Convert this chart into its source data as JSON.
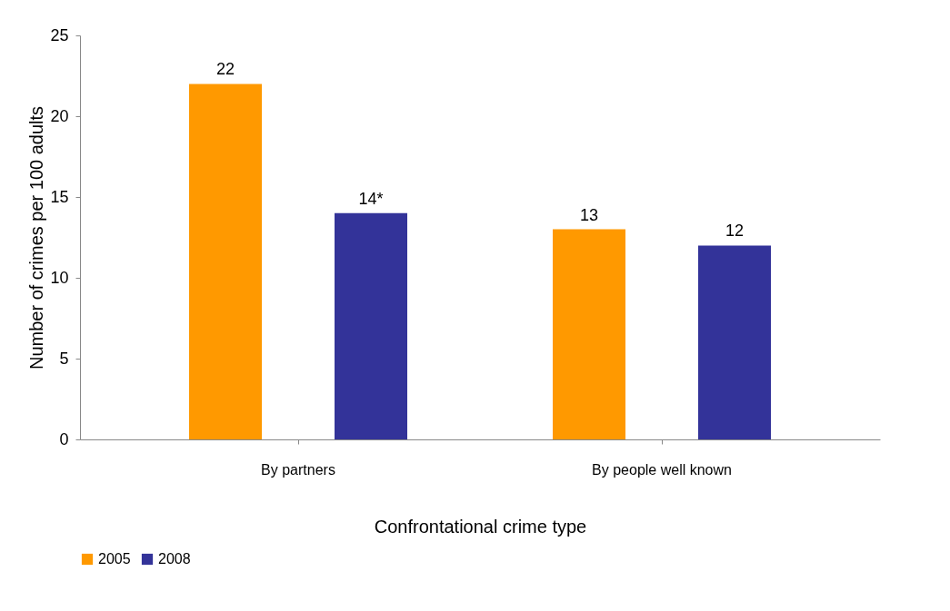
{
  "chart_data": {
    "type": "bar",
    "xlabel": "Confrontational  crime type",
    "ylabel": "Number of crimes per 100 adults",
    "categories": [
      "By partners",
      "By people well known"
    ],
    "series": [
      {
        "name": "2005",
        "color": "#ff9900",
        "values": [
          22,
          13
        ],
        "value_labels": [
          "22",
          "13"
        ]
      },
      {
        "name": "2008",
        "color": "#333399",
        "values": [
          14,
          12
        ],
        "value_labels": [
          "14*",
          "12"
        ]
      }
    ],
    "ylim": [
      0,
      25
    ],
    "yticks": [
      0,
      5,
      10,
      15,
      20,
      25
    ],
    "grid": false,
    "legend": "bottom"
  }
}
